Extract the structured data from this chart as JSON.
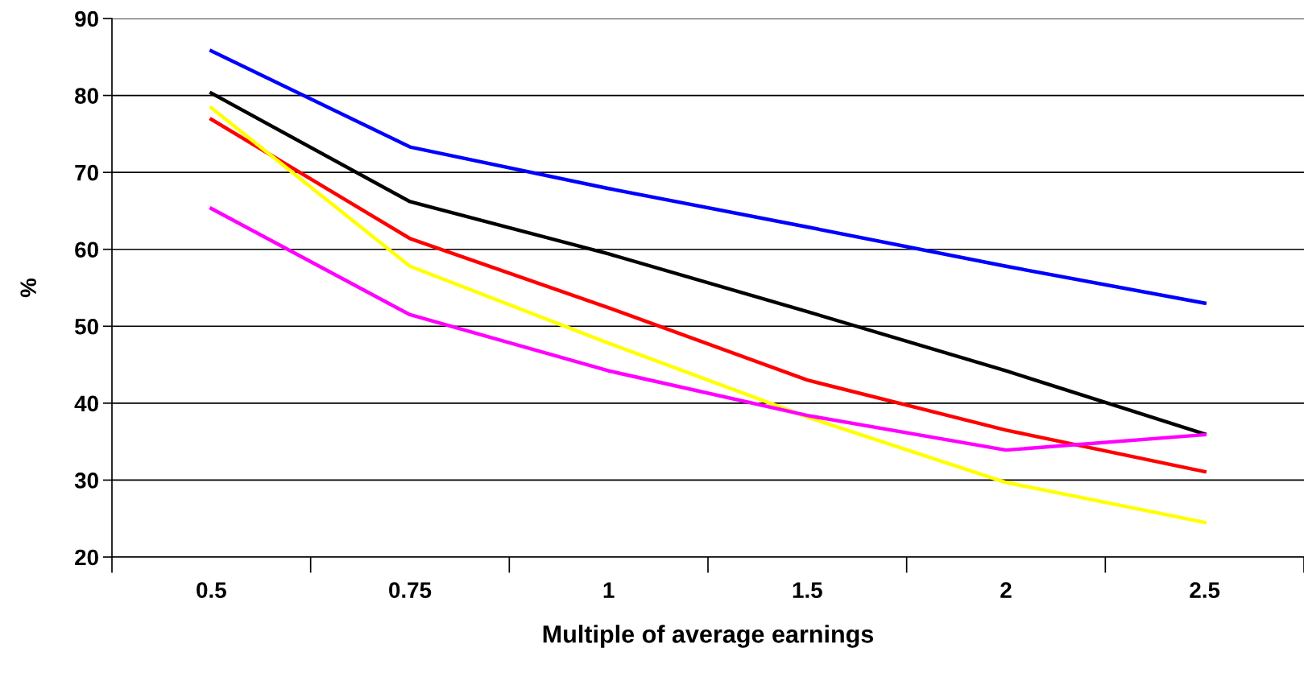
{
  "chart_data": {
    "type": "line",
    "xlabel": "Multiple of average earnings",
    "ylabel": "%",
    "categories": [
      "0.5",
      "0.75",
      "1",
      "1.5",
      "2",
      "2.5"
    ],
    "series": [
      {
        "color": "#0000ff",
        "values": [
          85.8,
          73.3,
          67.9,
          62.9,
          57.8,
          53.0
        ]
      },
      {
        "color": "#000000",
        "values": [
          80.3,
          66.2,
          59.4,
          51.9,
          44.2,
          36.0
        ]
      },
      {
        "color": "#ff0000",
        "values": [
          76.9,
          61.4,
          52.4,
          43.0,
          36.5,
          31.1
        ]
      },
      {
        "color": "#ffff00",
        "values": [
          78.4,
          57.8,
          47.8,
          38.2,
          29.7,
          24.5
        ]
      },
      {
        "color": "#ff00ff",
        "values": [
          65.3,
          51.5,
          44.2,
          38.4,
          33.9,
          35.9
        ]
      }
    ],
    "ylim": [
      20,
      90
    ],
    "yticks": [
      20,
      30,
      40,
      50,
      60,
      70,
      80,
      90
    ],
    "grid": "y",
    "marker": "none",
    "line_style": "solid"
  }
}
